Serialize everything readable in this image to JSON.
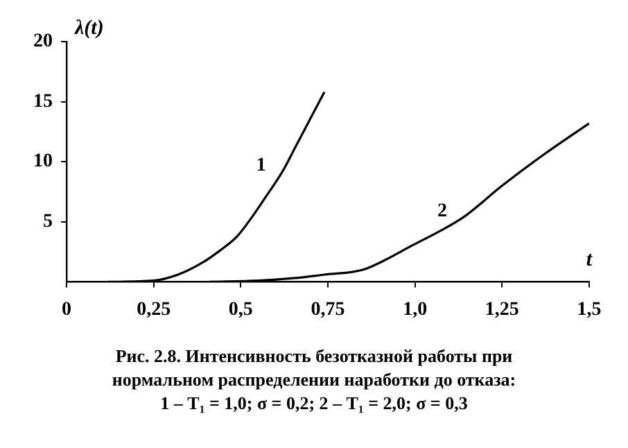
{
  "chart_data": {
    "type": "line",
    "xlabel": "t",
    "ylabel": "λ(t)",
    "xlim": [
      0,
      1.5
    ],
    "ylim": [
      0,
      20
    ],
    "xticks": [
      0,
      {
        "value": 0.25,
        "label": "0,25"
      },
      {
        "value": 0.5,
        "label": "0,5"
      },
      {
        "value": 0.75,
        "label": "0,75"
      },
      {
        "value": 1,
        "label": "1,0"
      },
      {
        "value": 1.25,
        "label": "1,25"
      },
      {
        "value": 1.5,
        "label": "1,5"
      }
    ],
    "yticks": [
      5,
      10,
      15,
      20
    ],
    "series": [
      {
        "name": "1",
        "color": "#000000",
        "x": [
          0.12,
          0.25,
          0.32,
          0.39,
          0.44,
          0.49,
          0.53,
          0.57,
          0.62,
          0.66,
          0.7,
          0.74
        ],
        "values": [
          0,
          0.1,
          0.6,
          1.6,
          2.6,
          3.8,
          5.3,
          7,
          9.2,
          11.4,
          13.6,
          15.8
        ]
      },
      {
        "name": "2",
        "color": "#000000",
        "x": [
          0.41,
          0.55,
          0.65,
          0.74,
          0.85,
          0.92,
          0.99,
          1.07,
          1.14,
          1.25,
          1.37,
          1.5
        ],
        "values": [
          0,
          0.1,
          0.3,
          0.6,
          1,
          1.9,
          3,
          4.2,
          5.4,
          8,
          10.6,
          13.2
        ]
      }
    ],
    "grid": false,
    "legend": false,
    "marker": "none",
    "line_style": "solid",
    "annotations": [
      "Рис. 2.8. Интенсивность безотказной работы при нормальном распределении наработки до отказа: 1 – T₁ = 1,0; σ = 0,2; 2 – T₁ = 2,0; σ = 0,3"
    ]
  }
}
